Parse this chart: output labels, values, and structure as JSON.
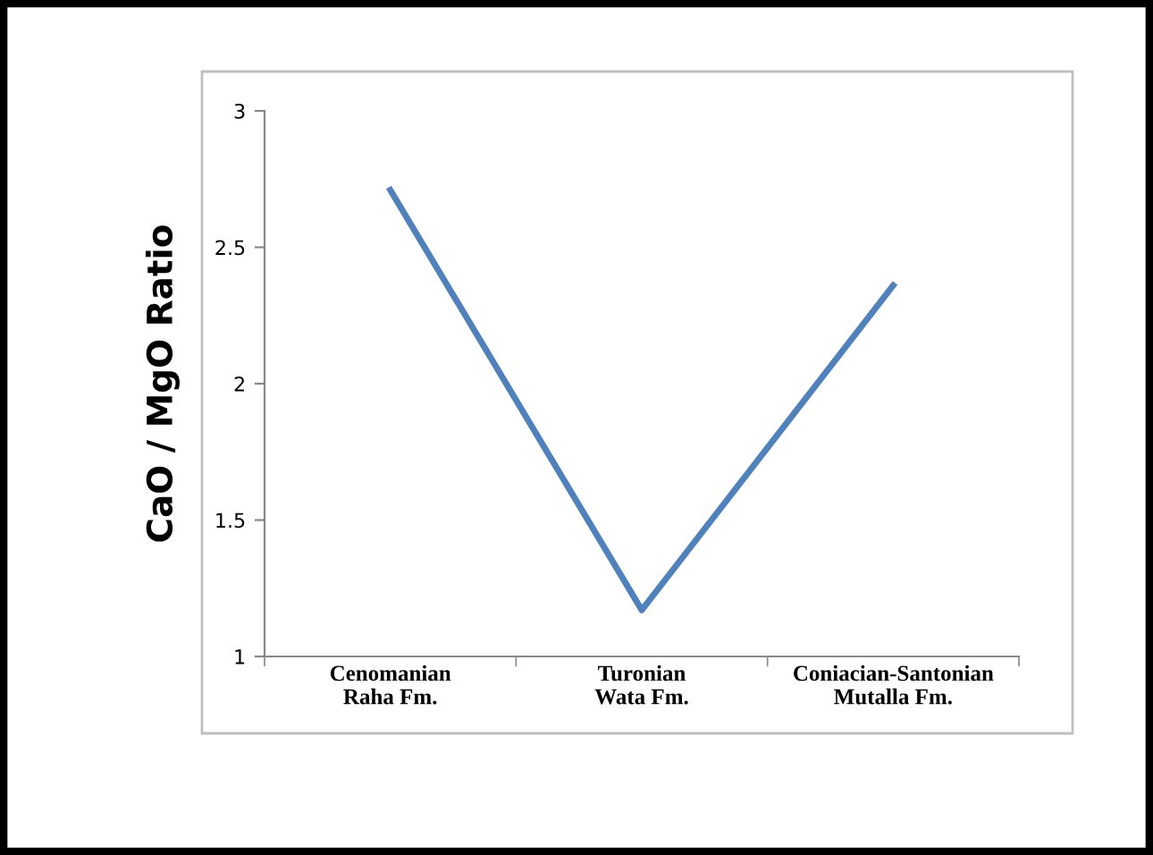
{
  "chart_data": {
    "type": "line",
    "ylabel": "CaO / MgO Ratio",
    "categories": [
      "Cenomanian\nRaha Fm.",
      "Turonian\nWata Fm.",
      "Coniacian-Santonian\nMutalla Fm."
    ],
    "series": [
      {
        "color": "#4f81bd",
        "values": [
          2.71,
          1.17,
          2.36
        ]
      }
    ],
    "ylim": [
      1,
      3
    ],
    "yticks": [
      1,
      1.5,
      2,
      2.5,
      3
    ],
    "grid": false,
    "marker": "none",
    "line_style": "solid"
  }
}
